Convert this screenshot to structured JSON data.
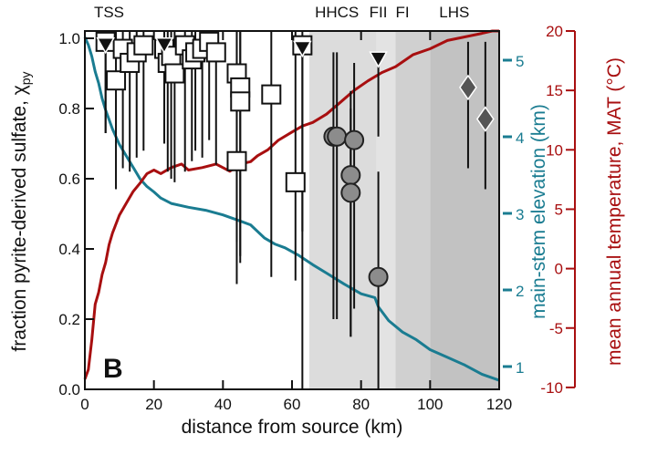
{
  "chart_data": {
    "type": "scatter",
    "panel_label": "B",
    "xlabel": "distance from source (km)",
    "ylabel": "fraction pyrite-derived sulfate, χ",
    "ylabel_sub": "py",
    "y2label": "main-stem elevation (km)",
    "y3label": "mean annual temperature, MAT (°C)",
    "xlim": [
      0,
      120
    ],
    "ylim": [
      0,
      1.02
    ],
    "y2lim": [
      0.7,
      5.45
    ],
    "y3lim": [
      -10,
      20.4
    ],
    "xticks": [
      "0",
      "20",
      "40",
      "60",
      "80",
      "100",
      "120"
    ],
    "yticks": [
      "0.0",
      "0.2",
      "0.4",
      "0.6",
      "0.8",
      "1.0"
    ],
    "y2ticks": [
      "1",
      "2",
      "3",
      "4",
      "5"
    ],
    "y3ticks": [
      "-10",
      "-5",
      "0",
      "5",
      "10",
      "15",
      "20"
    ],
    "zones": [
      {
        "label": "TSS",
        "from": 0,
        "to": 65,
        "color": "#ffffff",
        "label_at": 7
      },
      {
        "label": "HHCS",
        "from": 65,
        "to": 84.5,
        "color": "#dcdcdc",
        "label_at": 73
      },
      {
        "label": "FII",
        "from": 84.5,
        "to": 90,
        "color": "#e3e3e3",
        "label_at": 85
      },
      {
        "label": "FI",
        "from": 90,
        "to": 100,
        "color": "#d0d0d0",
        "label_at": 92
      },
      {
        "label": "LHS",
        "from": 100,
        "to": 120,
        "color": "#c2c2c2",
        "label_at": 107
      }
    ],
    "colors": {
      "elevation": "#1a7c91",
      "temperature": "#a80f10",
      "circle": "#8c8c8c",
      "diamond": "#555555"
    },
    "series": [
      {
        "name": "squares",
        "marker": "square",
        "points": [
          [
            6,
            0.99,
            0.73,
            1.02
          ],
          [
            9,
            0.88,
            0.57,
            1.02
          ],
          [
            11,
            0.97,
            0.63,
            1.02
          ],
          [
            13,
            0.93,
            0.62,
            1.02
          ],
          [
            15,
            0.96,
            0.66,
            1.02
          ],
          [
            17,
            0.98,
            0.68,
            1.02
          ],
          [
            23,
            0.97,
            0.7,
            1.02
          ],
          [
            24,
            0.93,
            0.62,
            1.02
          ],
          [
            25,
            0.95,
            0.6,
            1.02
          ],
          [
            26,
            0.9,
            0.59,
            1.02
          ],
          [
            29,
            0.98,
            0.62,
            1.02
          ],
          [
            31,
            0.94,
            0.65,
            1.02
          ],
          [
            32,
            0.96,
            0.68,
            1.02
          ],
          [
            34,
            0.97,
            0.66,
            1.02
          ],
          [
            36,
            0.99,
            0.71,
            1.02
          ],
          [
            38,
            0.96,
            0.64,
            1.02
          ],
          [
            44,
            0.9,
            0.42,
            1.02
          ],
          [
            45,
            0.86,
            0.38,
            1.02
          ],
          [
            45,
            0.82,
            0.36,
            1.02
          ],
          [
            44,
            0.65,
            0.3,
            1.02
          ],
          [
            54,
            0.84,
            0.32,
            1.02
          ],
          [
            61,
            0.59,
            0.31,
            1.02
          ],
          [
            63,
            0.98,
            0.45,
            1.02
          ]
        ]
      },
      {
        "name": "triangles",
        "marker": "triangle",
        "points": [
          [
            6,
            0.98,
            0.73,
            1.02
          ],
          [
            23,
            0.98,
            0.7,
            1.02
          ],
          [
            63,
            0.97,
            0.0,
            0.97
          ],
          [
            85,
            0.94,
            0.72,
            0.94
          ]
        ]
      },
      {
        "name": "circles",
        "marker": "circle",
        "points": [
          [
            72,
            0.72,
            0.2,
            0.96
          ],
          [
            73,
            0.72,
            0.2,
            0.96
          ],
          [
            78,
            0.71,
            0.23,
            0.93
          ],
          [
            77,
            0.61,
            0.15,
            0.85
          ],
          [
            77,
            0.56,
            0.15,
            0.8
          ],
          [
            85,
            0.32,
            0.0,
            0.62
          ]
        ]
      },
      {
        "name": "diamonds",
        "marker": "diamond",
        "points": [
          [
            111,
            0.86,
            0.63,
            0.99
          ],
          [
            116,
            0.77,
            0.57,
            0.99
          ]
        ]
      },
      {
        "name": "main-stem elevation",
        "axis": "y2",
        "line": [
          [
            0,
            5.3
          ],
          [
            1,
            5.2
          ],
          [
            2,
            5.05
          ],
          [
            3,
            4.85
          ],
          [
            4,
            4.7
          ],
          [
            5,
            4.5
          ],
          [
            6,
            4.35
          ],
          [
            8,
            4.1
          ],
          [
            10,
            3.9
          ],
          [
            12,
            3.75
          ],
          [
            14,
            3.6
          ],
          [
            16,
            3.45
          ],
          [
            18,
            3.35
          ],
          [
            20,
            3.28
          ],
          [
            22,
            3.2
          ],
          [
            25,
            3.13
          ],
          [
            30,
            3.08
          ],
          [
            35,
            3.04
          ],
          [
            40,
            2.98
          ],
          [
            45,
            2.9
          ],
          [
            48,
            2.85
          ],
          [
            52,
            2.68
          ],
          [
            55,
            2.6
          ],
          [
            58,
            2.55
          ],
          [
            62,
            2.45
          ],
          [
            66,
            2.33
          ],
          [
            70,
            2.22
          ],
          [
            75,
            2.08
          ],
          [
            80,
            1.95
          ],
          [
            84,
            1.9
          ],
          [
            85,
            1.78
          ],
          [
            88,
            1.6
          ],
          [
            92,
            1.45
          ],
          [
            96,
            1.35
          ],
          [
            100,
            1.22
          ],
          [
            105,
            1.12
          ],
          [
            110,
            1.02
          ],
          [
            115,
            0.9
          ],
          [
            120,
            0.82
          ]
        ]
      },
      {
        "name": "mean annual temperature",
        "axis": "y3",
        "line": [
          [
            0,
            -9.3
          ],
          [
            1,
            -8.5
          ],
          [
            2,
            -6
          ],
          [
            3,
            -3
          ],
          [
            4,
            -2
          ],
          [
            5,
            -0.5
          ],
          [
            6,
            0.5
          ],
          [
            7,
            2
          ],
          [
            8,
            3
          ],
          [
            10,
            4.5
          ],
          [
            12,
            5.5
          ],
          [
            14,
            6.5
          ],
          [
            16,
            7.2
          ],
          [
            18,
            8
          ],
          [
            20,
            8.3
          ],
          [
            22,
            8
          ],
          [
            25,
            8.5
          ],
          [
            28,
            8.8
          ],
          [
            30,
            8.3
          ],
          [
            34,
            8.5
          ],
          [
            38,
            8.8
          ],
          [
            42,
            8.2
          ],
          [
            45,
            8.8
          ],
          [
            48,
            9
          ],
          [
            50,
            9.5
          ],
          [
            53,
            10
          ],
          [
            56,
            10.8
          ],
          [
            60,
            11.5
          ],
          [
            63,
            12
          ],
          [
            66,
            12.3
          ],
          [
            70,
            13
          ],
          [
            74,
            14
          ],
          [
            78,
            15
          ],
          [
            82,
            15.8
          ],
          [
            86,
            16.5
          ],
          [
            90,
            17
          ],
          [
            95,
            18
          ],
          [
            100,
            18.5
          ],
          [
            105,
            19.2
          ],
          [
            110,
            19.5
          ],
          [
            115,
            19.8
          ],
          [
            118,
            20
          ],
          [
            120,
            20
          ]
        ]
      }
    ]
  }
}
